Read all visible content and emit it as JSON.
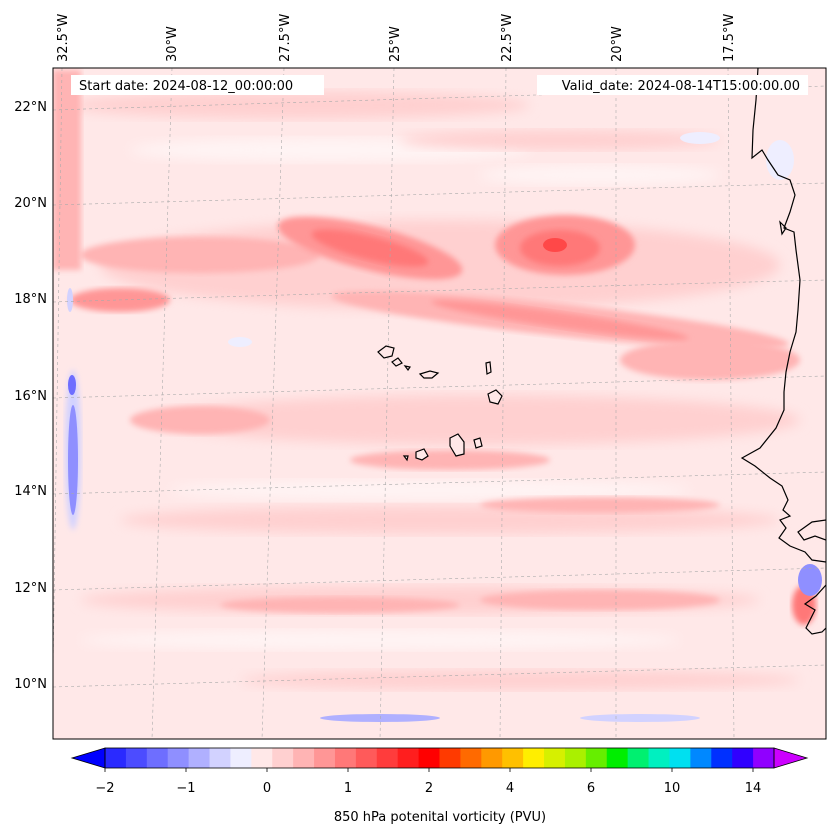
{
  "map": {
    "start_date": "Start date: 2024-08-12_00:00:00",
    "valid_date": "Valid_date: 2024-08-14T15:00:00.00",
    "lon_labels": [
      "32.5°W",
      "30°W",
      "27.5°W",
      "25°W",
      "22.5°W",
      "20°W",
      "17.5°W"
    ],
    "lat_labels": [
      "22°N",
      "20°N",
      "18°N",
      "16°N",
      "14°N",
      "12°N",
      "10°N"
    ],
    "extent": {
      "lon_min": -32.5,
      "lon_max": -15.0,
      "lat_min": 8.9,
      "lat_max": 22.7
    }
  },
  "colorbar": {
    "label": "850 hPa potenital vorticity (PVU)",
    "tick_labels": [
      "−2",
      "−1",
      "0",
      "1",
      "2",
      "4",
      "6",
      "10",
      "14"
    ],
    "colors": [
      "#0000ff",
      "#2a2aff",
      "#4c4cff",
      "#6e6eff",
      "#8f8fff",
      "#b0b0ff",
      "#d2d2ff",
      "#eeeeff",
      "#ffe8e8",
      "#ffd0d0",
      "#ffb4b4",
      "#ff9696",
      "#ff7878",
      "#ff5a5a",
      "#ff3c3c",
      "#ff1e1e",
      "#ff0000",
      "#ff3a00",
      "#ff6a00",
      "#ff9900",
      "#ffc000",
      "#ffee00",
      "#d6f000",
      "#aaf000",
      "#66ee00",
      "#00ee00",
      "#00f070",
      "#00f0c0",
      "#00e0f0",
      "#0088ff",
      "#0030ff",
      "#3000ff",
      "#9000ff",
      "#cc00ff"
    ]
  },
  "colors": {
    "background_pv": "#ffe8e8",
    "coastline": "#000000"
  }
}
